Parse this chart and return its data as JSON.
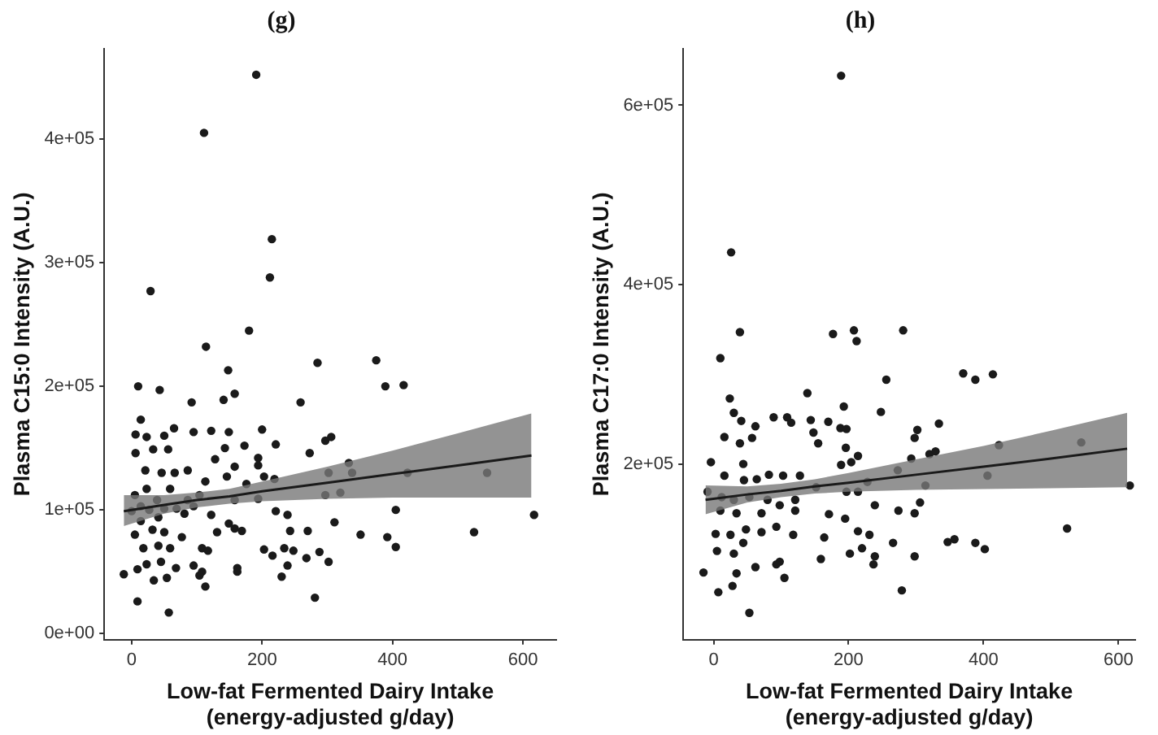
{
  "chart_data": [
    {
      "type": "scatter",
      "title": "(g)",
      "xlabel": "Low-fat Fermented Dairy Intake\n(energy-adjusted g/day)",
      "ylabel": "Plasma C15:0 Intensity (A.U.)",
      "xlim": [
        -42,
        651
      ],
      "ylim": [
        -5000,
        473000
      ],
      "xticks": [
        0,
        200,
        400,
        600
      ],
      "yticks": [
        {
          "value": 0,
          "label": "0e+00"
        },
        {
          "value": 100000,
          "label": "1e+05"
        },
        {
          "value": 200000,
          "label": "2e+05"
        },
        {
          "value": 300000,
          "label": "3e+05"
        },
        {
          "value": 400000,
          "label": "4e+05"
        }
      ],
      "series": [
        {
          "marker": "circle",
          "color": "#1a1a1a",
          "x": [
            191,
            111,
            215,
            212,
            29,
            180,
            114,
            285,
            375,
            148,
            10,
            43,
            92,
            141,
            158,
            259,
            389,
            417,
            14,
            65,
            95,
            122,
            149,
            200,
            221,
            173,
            6,
            23,
            50,
            306,
            297,
            273,
            6,
            33,
            56,
            128,
            143,
            194,
            333,
            21,
            46,
            66,
            86,
            158,
            194,
            203,
            219,
            302,
            338,
            423,
            545,
            23,
            59,
            113,
            146,
            176,
            320,
            297,
            5,
            39,
            86,
            104,
            158,
            194,
            0,
            14,
            27,
            50,
            69,
            95,
            405,
            617,
            14,
            41,
            81,
            122,
            149,
            221,
            239,
            311,
            5,
            32,
            50,
            77,
            131,
            158,
            169,
            243,
            270,
            351,
            392,
            525,
            18,
            41,
            59,
            108,
            117,
            203,
            216,
            234,
            248,
            288,
            405,
            23,
            45,
            68,
            95,
            108,
            162,
            302,
            9,
            -12,
            34,
            54,
            104,
            162,
            239,
            230,
            113,
            268,
            9,
            281,
            57
          ],
          "values": [
            452000,
            405000,
            319000,
            288000,
            277000,
            245000,
            232000,
            219000,
            221000,
            213000,
            200000,
            197000,
            187000,
            189000,
            194000,
            187000,
            200000,
            201000,
            173000,
            166000,
            163000,
            164000,
            163000,
            165000,
            153000,
            152000,
            161000,
            159000,
            160000,
            159000,
            156000,
            146000,
            146000,
            149000,
            149000,
            141000,
            150000,
            142000,
            138000,
            132000,
            130000,
            130000,
            132000,
            135000,
            136000,
            127000,
            125000,
            130000,
            130000,
            130000,
            130000,
            117000,
            117000,
            123000,
            127000,
            121000,
            114000,
            112000,
            112000,
            108000,
            108000,
            112000,
            108000,
            109000,
            99000,
            103000,
            100000,
            101000,
            101000,
            103000,
            100000,
            96000,
            91000,
            94000,
            97000,
            96000,
            89000,
            99000,
            96000,
            90000,
            80000,
            84000,
            82000,
            78000,
            82000,
            85000,
            83000,
            83000,
            83000,
            80000,
            78000,
            82000,
            69000,
            71000,
            69000,
            69000,
            67000,
            68000,
            63000,
            69000,
            67000,
            66000,
            70000,
            56000,
            58000,
            53000,
            55000,
            50000,
            53000,
            58000,
            52000,
            48000,
            43000,
            45000,
            47000,
            50000,
            55000,
            46000,
            38000,
            61000,
            26000,
            29000,
            17000
          ]
        },
        {
          "type": "line",
          "marker": "none",
          "color": "#1a1a1a",
          "x": [
            -12,
            50,
            100,
            150,
            200,
            300,
            400,
            500,
            613
          ],
          "values": [
            99000,
            104000,
            108000,
            111000,
            115000,
            122000,
            129000,
            136000,
            144000
          ],
          "lower": [
            87000,
            97000,
            102000,
            105000,
            107000,
            109000,
            110000,
            110000,
            110000
          ],
          "upper": [
            112000,
            112000,
            114000,
            117000,
            123000,
            135000,
            148000,
            162000,
            178000
          ]
        }
      ]
    },
    {
      "type": "scatter",
      "title": "(h)",
      "xlabel": "Low-fat Fermented Dairy Intake\n(energy-adjusted g/day)",
      "ylabel": "Plasma C17:0 Intensity (A.U.)",
      "xlim": [
        -45,
        625
      ],
      "ylim": [
        4000,
        663000
      ],
      "xticks": [
        0,
        200,
        400,
        600
      ],
      "yticks": [
        {
          "value": 200000,
          "label": "2e+05"
        },
        {
          "value": 400000,
          "label": "4e+05"
        },
        {
          "value": 600000,
          "label": "6e+05"
        }
      ],
      "series": [
        {
          "marker": "circle",
          "color": "#1a1a1a",
          "x": [
            189,
            26,
            39,
            177,
            208,
            212,
            281,
            10,
            370,
            388,
            414,
            256,
            139,
            24,
            30,
            41,
            193,
            248,
            89,
            109,
            144,
            170,
            115,
            334,
            188,
            197,
            62,
            16,
            57,
            39,
            148,
            155,
            302,
            298,
            423,
            545,
            196,
            214,
            204,
            293,
            320,
            329,
            -4,
            16,
            45,
            64,
            82,
            103,
            128,
            44,
            189,
            228,
            273,
            406,
            617,
            -9,
            12,
            30,
            53,
            80,
            98,
            121,
            152,
            197,
            214,
            314,
            10,
            34,
            71,
            121,
            171,
            239,
            274,
            306,
            298,
            195,
            524,
            3,
            25,
            48,
            71,
            93,
            118,
            164,
            214,
            231,
            266,
            347,
            357,
            388,
            402,
            5,
            30,
            44,
            202,
            220,
            239,
            298,
            98,
            159,
            93,
            105,
            34,
            62,
            237,
            -15,
            28,
            7,
            279,
            53
          ],
          "values": [
            633000,
            436000,
            347000,
            345000,
            349000,
            337000,
            349000,
            318000,
            301000,
            294000,
            300000,
            294000,
            279000,
            273000,
            257000,
            248000,
            264000,
            258000,
            252000,
            252000,
            249000,
            247000,
            246000,
            245000,
            240000,
            239000,
            242000,
            230000,
            229000,
            223000,
            235000,
            223000,
            238000,
            229000,
            221000,
            224000,
            218000,
            209000,
            202000,
            206000,
            211000,
            214000,
            202000,
            187000,
            182000,
            183000,
            188000,
            187000,
            187000,
            200000,
            199000,
            180000,
            193000,
            187000,
            176000,
            169000,
            163000,
            160000,
            163000,
            160000,
            154000,
            160000,
            174000,
            169000,
            169000,
            176000,
            148000,
            145000,
            145000,
            148000,
            144000,
            154000,
            148000,
            157000,
            145000,
            139000,
            128000,
            122000,
            121000,
            127000,
            124000,
            130000,
            121000,
            118000,
            125000,
            121000,
            112000,
            113000,
            116000,
            112000,
            105000,
            103000,
            100000,
            112000,
            100000,
            106000,
            97000,
            97000,
            91000,
            94000,
            88000,
            73000,
            78000,
            85000,
            88000,
            79000,
            64000,
            57000,
            59000,
            34000
          ]
        },
        {
          "type": "line",
          "marker": "none",
          "color": "#1a1a1a",
          "x": [
            -12,
            50,
            100,
            150,
            200,
            300,
            400,
            500,
            613
          ],
          "values": [
            160000,
            166000,
            170000,
            175000,
            179000,
            188000,
            197000,
            206000,
            217000
          ],
          "lower": [
            144000,
            157000,
            163000,
            167000,
            169000,
            171000,
            172000,
            173000,
            174000
          ],
          "upper": [
            176000,
            175000,
            178000,
            183000,
            190000,
            205000,
            220000,
            237000,
            257000
          ]
        }
      ]
    }
  ]
}
